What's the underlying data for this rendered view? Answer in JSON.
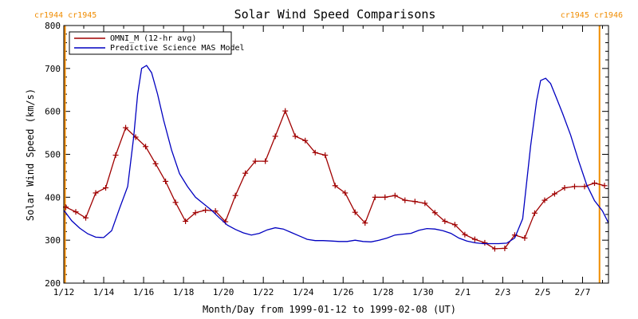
{
  "chart_data": {
    "type": "line",
    "title": "Solar Wind Speed Comparisons",
    "xlabel": "Month/Day from 1999-01-12 to 1999-02-08 (UT)",
    "ylabel": "Solar Wind Speed (km/s)",
    "xlim": [
      0,
      27.3
    ],
    "ylim": [
      200,
      800
    ],
    "y_ticks": [
      200,
      300,
      400,
      500,
      600,
      700,
      800
    ],
    "x_ticks": [
      {
        "day": 0,
        "label": "1/12"
      },
      {
        "day": 2,
        "label": "1/14"
      },
      {
        "day": 4,
        "label": "1/16"
      },
      {
        "day": 6,
        "label": "1/18"
      },
      {
        "day": 8,
        "label": "1/20"
      },
      {
        "day": 10,
        "label": "1/22"
      },
      {
        "day": 12,
        "label": "1/24"
      },
      {
        "day": 14,
        "label": "1/26"
      },
      {
        "day": 16,
        "label": "1/28"
      },
      {
        "day": 18,
        "label": "1/30"
      },
      {
        "day": 20,
        "label": "2/1"
      },
      {
        "day": 22,
        "label": "2/3"
      },
      {
        "day": 24,
        "label": "2/5"
      },
      {
        "day": 26,
        "label": "2/7"
      }
    ],
    "carrington_markers": [
      {
        "day": 0,
        "label": "cr1944 cr1945",
        "align": "left"
      },
      {
        "day": 26.85,
        "label": "cr1945 cr1946",
        "align": "right"
      }
    ],
    "series": [
      {
        "name": "OMNI_M (12-hr avg)",
        "color": "#a00000",
        "marker": "plus",
        "points": [
          [
            0.1,
            377
          ],
          [
            0.6,
            366
          ],
          [
            1.1,
            352
          ],
          [
            1.6,
            410
          ],
          [
            2.1,
            422
          ],
          [
            2.6,
            498
          ],
          [
            3.1,
            562
          ],
          [
            3.6,
            540
          ],
          [
            4.1,
            518
          ],
          [
            4.6,
            478
          ],
          [
            5.1,
            437
          ],
          [
            5.6,
            388
          ],
          [
            6.1,
            344
          ],
          [
            6.6,
            364
          ],
          [
            7.1,
            370
          ],
          [
            7.6,
            368
          ],
          [
            8.1,
            343
          ],
          [
            8.6,
            404
          ],
          [
            9.1,
            456
          ],
          [
            9.6,
            484
          ],
          [
            10.1,
            484
          ],
          [
            10.6,
            542
          ],
          [
            11.1,
            601
          ],
          [
            11.6,
            542
          ],
          [
            12.1,
            532
          ],
          [
            12.6,
            504
          ],
          [
            13.1,
            498
          ],
          [
            13.6,
            427
          ],
          [
            14.1,
            410
          ],
          [
            14.6,
            365
          ],
          [
            15.1,
            340
          ],
          [
            15.6,
            400
          ],
          [
            16.1,
            400
          ],
          [
            16.6,
            404
          ],
          [
            17.1,
            393
          ],
          [
            17.6,
            390
          ],
          [
            18.1,
            386
          ],
          [
            18.6,
            364
          ],
          [
            19.1,
            344
          ],
          [
            19.6,
            336
          ],
          [
            20.1,
            313
          ],
          [
            20.6,
            302
          ],
          [
            21.1,
            294
          ],
          [
            21.6,
            280
          ],
          [
            22.1,
            281
          ],
          [
            22.6,
            312
          ],
          [
            23.1,
            305
          ],
          [
            23.6,
            363
          ],
          [
            24.1,
            393
          ],
          [
            24.6,
            408
          ],
          [
            25.1,
            422
          ],
          [
            25.6,
            425
          ],
          [
            26.1,
            425
          ],
          [
            26.6,
            433
          ],
          [
            27.1,
            427
          ]
        ]
      },
      {
        "name": "Predictive Science MAS Model",
        "color": "#0000c0",
        "marker": "none",
        "points": [
          [
            0,
            370
          ],
          [
            0.4,
            345
          ],
          [
            0.8,
            328
          ],
          [
            1.2,
            315
          ],
          [
            1.6,
            307
          ],
          [
            2.0,
            306
          ],
          [
            2.4,
            322
          ],
          [
            2.8,
            375
          ],
          [
            3.2,
            425
          ],
          [
            3.5,
            540
          ],
          [
            3.7,
            640
          ],
          [
            3.9,
            700
          ],
          [
            4.15,
            707
          ],
          [
            4.4,
            690
          ],
          [
            4.7,
            640
          ],
          [
            5.0,
            580
          ],
          [
            5.4,
            510
          ],
          [
            5.8,
            455
          ],
          [
            6.2,
            425
          ],
          [
            6.6,
            400
          ],
          [
            7.0,
            385
          ],
          [
            7.4,
            370
          ],
          [
            7.8,
            352
          ],
          [
            8.2,
            335
          ],
          [
            8.6,
            325
          ],
          [
            9.0,
            317
          ],
          [
            9.4,
            312
          ],
          [
            9.8,
            316
          ],
          [
            10.2,
            324
          ],
          [
            10.6,
            329
          ],
          [
            11.0,
            326
          ],
          [
            11.4,
            318
          ],
          [
            11.8,
            310
          ],
          [
            12.2,
            302
          ],
          [
            12.6,
            299
          ],
          [
            13.0,
            299
          ],
          [
            13.4,
            298
          ],
          [
            13.8,
            297
          ],
          [
            14.2,
            297
          ],
          [
            14.6,
            300
          ],
          [
            15.0,
            297
          ],
          [
            15.4,
            296
          ],
          [
            15.8,
            300
          ],
          [
            16.2,
            305
          ],
          [
            16.6,
            312
          ],
          [
            17.0,
            314
          ],
          [
            17.4,
            316
          ],
          [
            17.8,
            323
          ],
          [
            18.2,
            327
          ],
          [
            18.6,
            326
          ],
          [
            19.0,
            322
          ],
          [
            19.4,
            316
          ],
          [
            19.8,
            305
          ],
          [
            20.2,
            298
          ],
          [
            20.6,
            294
          ],
          [
            21.0,
            292
          ],
          [
            21.4,
            292
          ],
          [
            21.8,
            292
          ],
          [
            22.2,
            293
          ],
          [
            22.6,
            305
          ],
          [
            23.0,
            350
          ],
          [
            23.4,
            520
          ],
          [
            23.7,
            625
          ],
          [
            23.9,
            672
          ],
          [
            24.15,
            677
          ],
          [
            24.4,
            665
          ],
          [
            24.7,
            630
          ],
          [
            25.0,
            595
          ],
          [
            25.4,
            545
          ],
          [
            25.8,
            485
          ],
          [
            26.2,
            430
          ],
          [
            26.6,
            392
          ],
          [
            27.0,
            368
          ],
          [
            27.3,
            340
          ]
        ]
      }
    ],
    "legend_position": "top-left",
    "grid": false
  }
}
